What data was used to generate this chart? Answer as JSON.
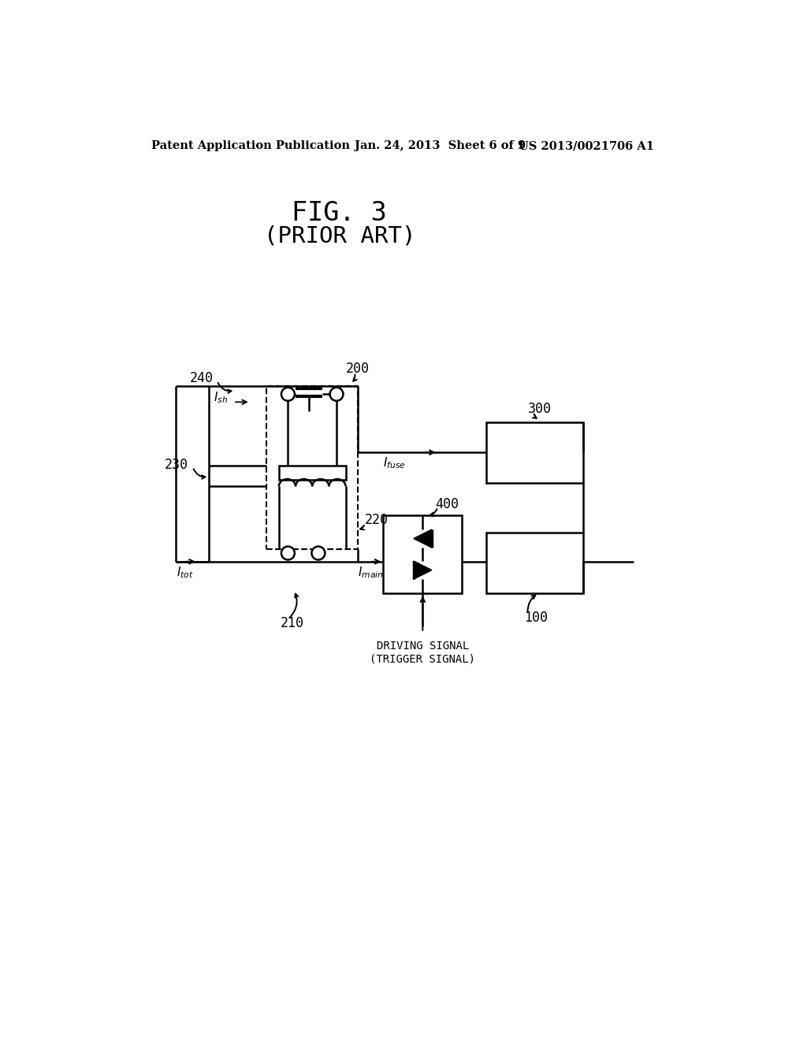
{
  "bg_color": "#ffffff",
  "line_color": "#000000",
  "header_left": "Patent Application Publication",
  "header_center": "Jan. 24, 2013  Sheet 6 of 9",
  "header_right": "US 2013/0021706 A1",
  "fig_title_line1": "FIG. 3",
  "fig_title_line2": "(PRIOR ART)",
  "label_200": "200",
  "label_210": "210",
  "label_220": "220",
  "label_230": "230",
  "label_240": "240",
  "label_300": "300",
  "label_400": "400",
  "label_100": "100",
  "driving_signal": "DRIVING SIGNAL\n(TRIGGER SIGNAL)"
}
